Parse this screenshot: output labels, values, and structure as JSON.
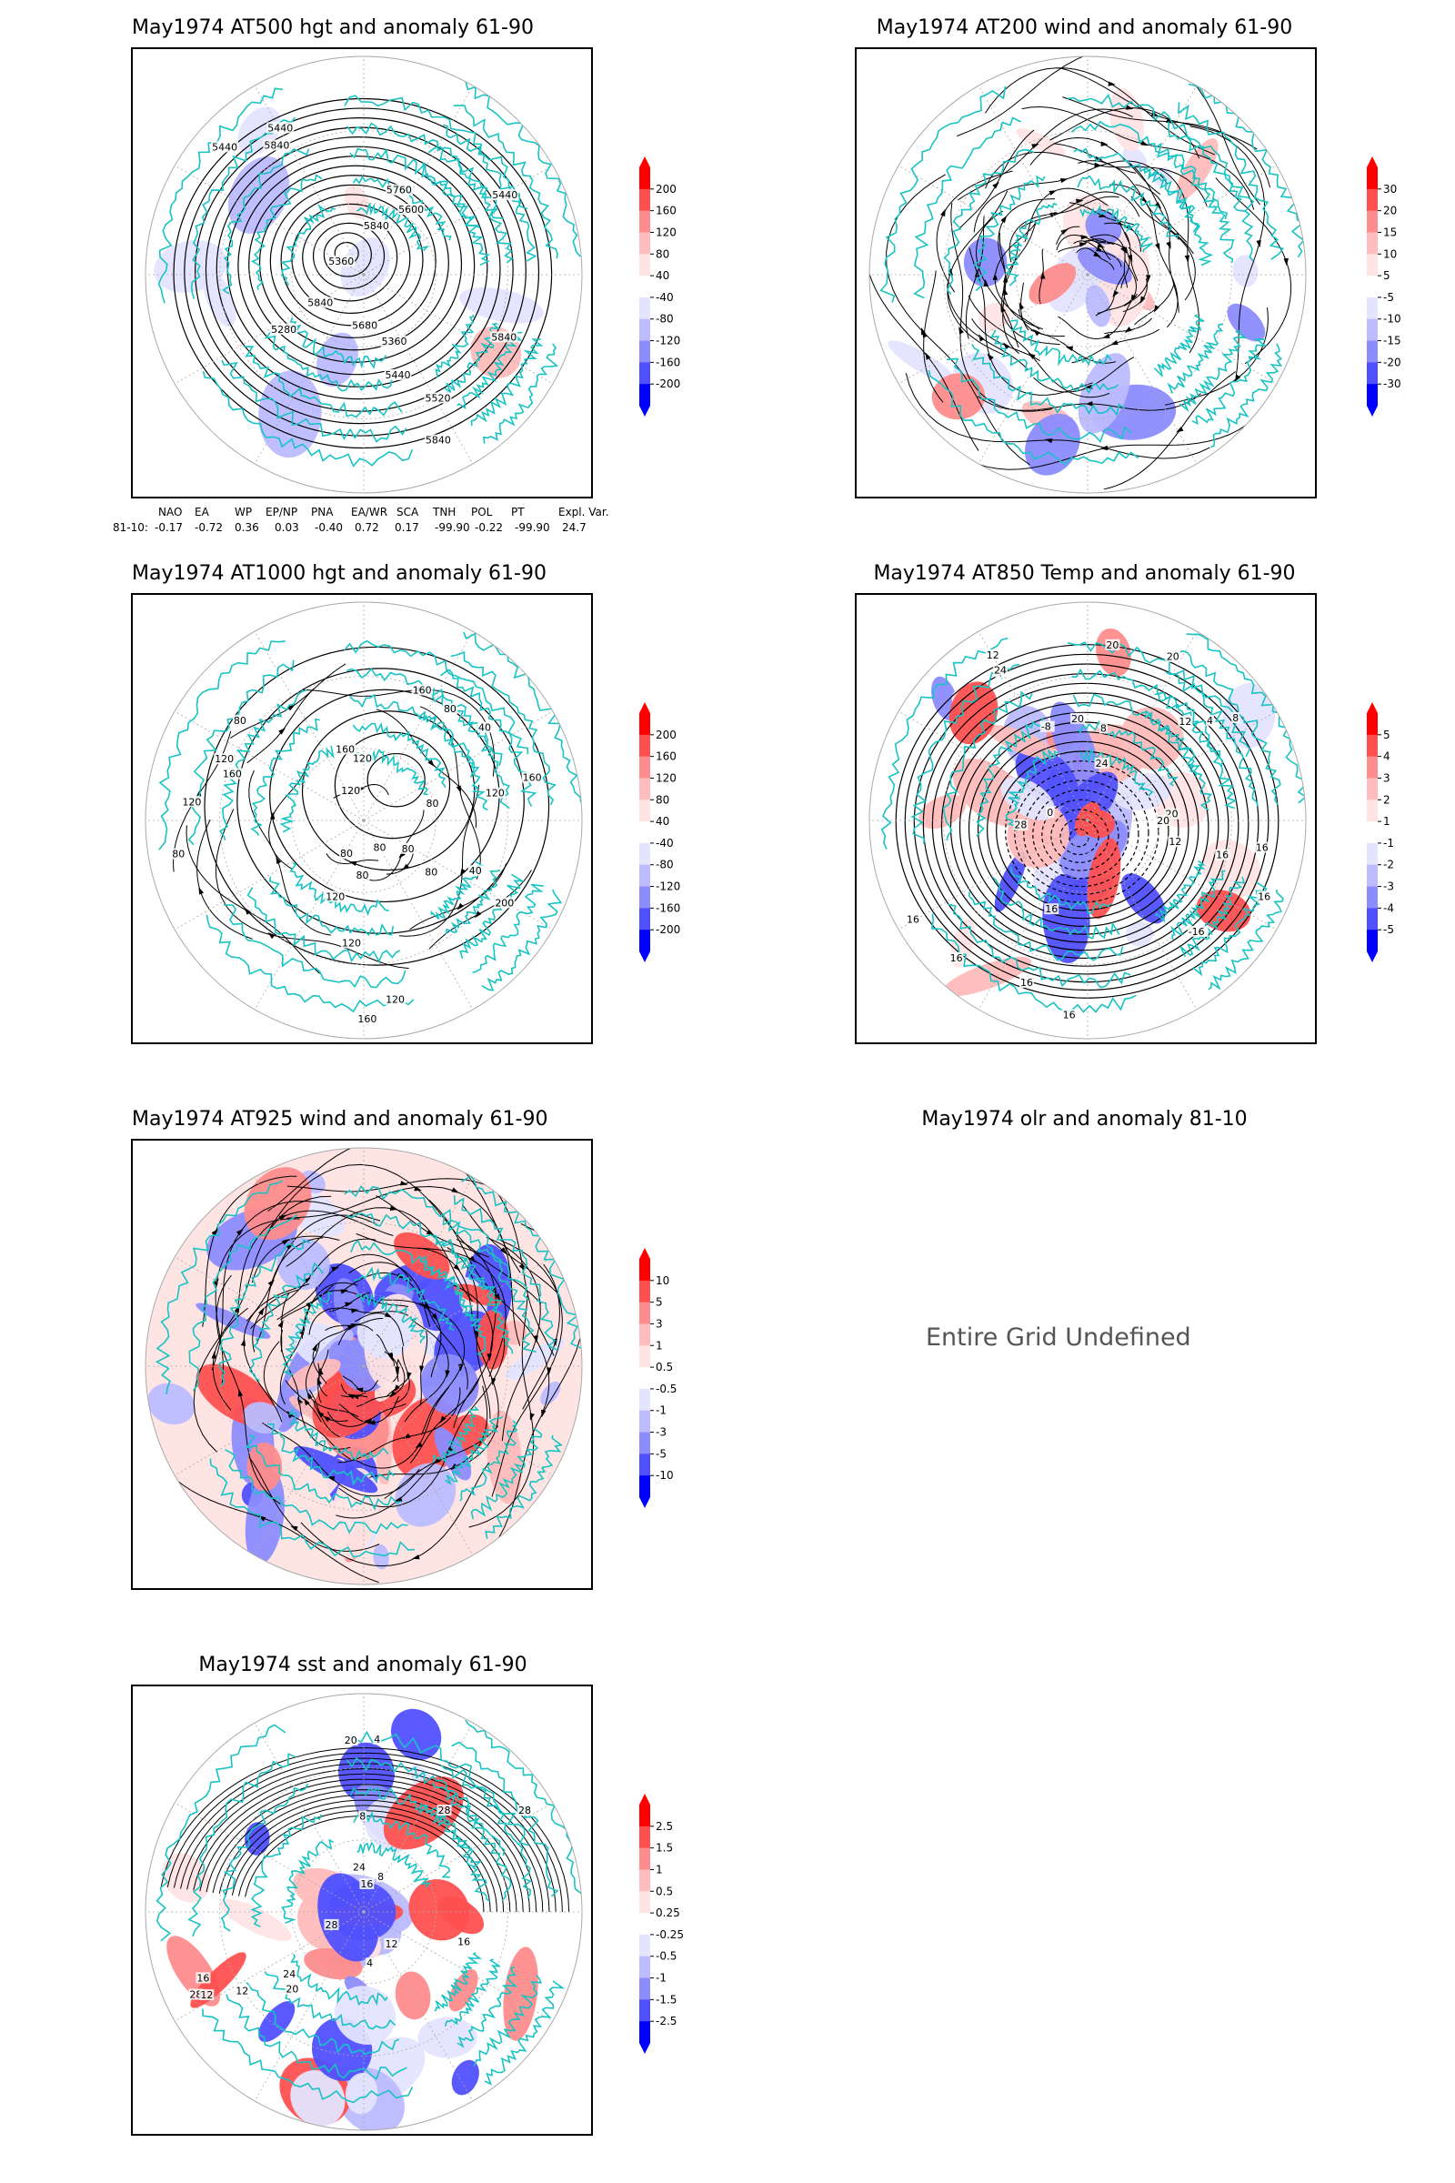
{
  "colors": {
    "coast": "#19c3c3",
    "contour": "#000000",
    "neg": "#2424ff",
    "pos": "#ff2424"
  },
  "panels": [
    {
      "id": "p500",
      "title": "May1974 AT500 hgt and anomaly 61-90",
      "contour_labels": [
        "5840",
        "5840",
        "5840",
        "5360",
        "5440",
        "5440",
        "5280",
        "5360",
        "5440",
        "5520",
        "5600",
        "5680",
        "5760",
        "5840",
        "5840",
        "5440"
      ],
      "colorbar": [
        "200",
        "160",
        "120",
        "80",
        "40",
        "-40",
        "-80",
        "-120",
        "-160",
        "-200"
      ],
      "index_table": {
        "headers": [
          "NAO",
          "EA",
          "WP",
          "EP/NP",
          "PNA",
          "EA/WR",
          "SCA",
          "TNH",
          "POL",
          "PT",
          "Expl. Var."
        ],
        "row_label": "81-10:",
        "values": [
          "-0.17",
          "-0.72",
          "0.36",
          "0.03",
          "-0.40",
          "0.72",
          "0.17",
          "-99.90",
          "-0.22",
          "-99.90",
          "24.7"
        ]
      }
    },
    {
      "id": "p200",
      "title": "May1974 AT200 wind and anomaly 61-90",
      "contour_labels": [],
      "colorbar": [
        "30",
        "20",
        "15",
        "10",
        "5",
        "-5",
        "-10",
        "-15",
        "-20",
        "-30"
      ]
    },
    {
      "id": "p1000",
      "title": "May1974 AT1000 hgt and anomaly 61-90",
      "contour_labels": [
        "120",
        "80",
        "160",
        "160",
        "120",
        "200",
        "160",
        "120",
        "80",
        "120",
        "160",
        "120",
        "80",
        "80",
        "40",
        "120",
        "80",
        "160",
        "120",
        "80",
        "120",
        "80",
        "40",
        "80",
        "80"
      ],
      "colorbar": [
        "200",
        "160",
        "120",
        "80",
        "40",
        "-40",
        "-80",
        "-120",
        "-160",
        "-200"
      ]
    },
    {
      "id": "p850",
      "title": "May1974 AT850 Temp and anomaly 61-90",
      "contour_labels": [
        "16",
        "12",
        "8",
        "20",
        "16",
        "4",
        "-16",
        "12",
        "0",
        "-8",
        "16",
        "20",
        "24",
        "16",
        "4",
        "8",
        "12",
        "16",
        "20",
        "28",
        "24",
        "20",
        "16",
        "16",
        "16",
        "20"
      ],
      "colorbar": [
        "5",
        "4",
        "3",
        "2",
        "1",
        "-1",
        "-2",
        "-3",
        "-4",
        "-5"
      ]
    },
    {
      "id": "p925",
      "title": "May1974 AT925 wind and anomaly 61-90",
      "contour_labels": [],
      "colorbar": [
        "10",
        "5",
        "3",
        "1",
        "0.5",
        "-0.5",
        "-1",
        "-3",
        "-5",
        "-10"
      ]
    },
    {
      "id": "polr",
      "title": "May1974 olr and anomaly 81-10",
      "message": "Entire Grid Undefined"
    },
    {
      "id": "psst",
      "title": "May1974 sst and anomaly 61-90",
      "contour_labels": [
        "28",
        "28",
        "24",
        "20",
        "16",
        "12",
        "8",
        "4",
        "28",
        "4",
        "8",
        "12",
        "16",
        "20",
        "24",
        "28",
        "16",
        "12"
      ],
      "colorbar": [
        "2.5",
        "1.5",
        "1",
        "0.5",
        "0.25",
        "-0.25",
        "-0.5",
        "-1",
        "-1.5",
        "-2.5"
      ]
    }
  ]
}
